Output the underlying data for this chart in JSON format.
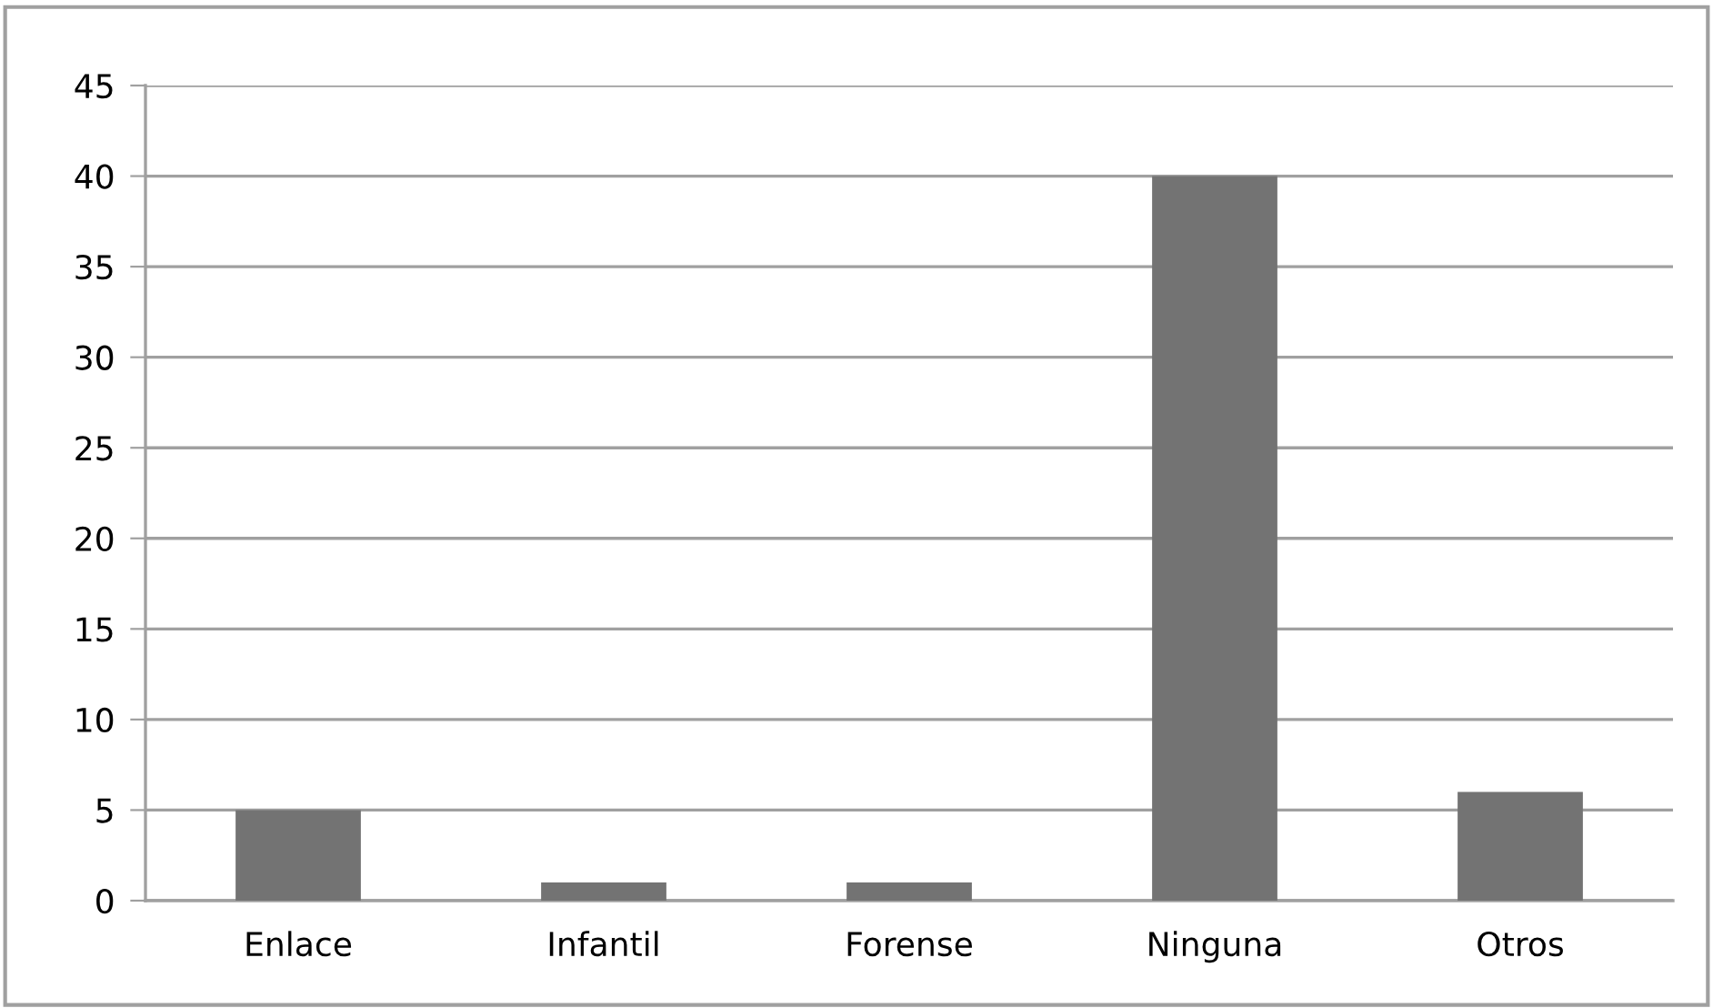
{
  "chart_data": {
    "type": "bar",
    "categories": [
      "Enlace",
      "Infantil",
      "Forense",
      "Ninguna",
      "Otros"
    ],
    "values": [
      5,
      1,
      1,
      40,
      6
    ],
    "color": "#737373",
    "ylim": [
      0,
      45
    ],
    "yticks": [
      0,
      5,
      10,
      15,
      20,
      25,
      30,
      35,
      40,
      45
    ],
    "grid": "y"
  }
}
